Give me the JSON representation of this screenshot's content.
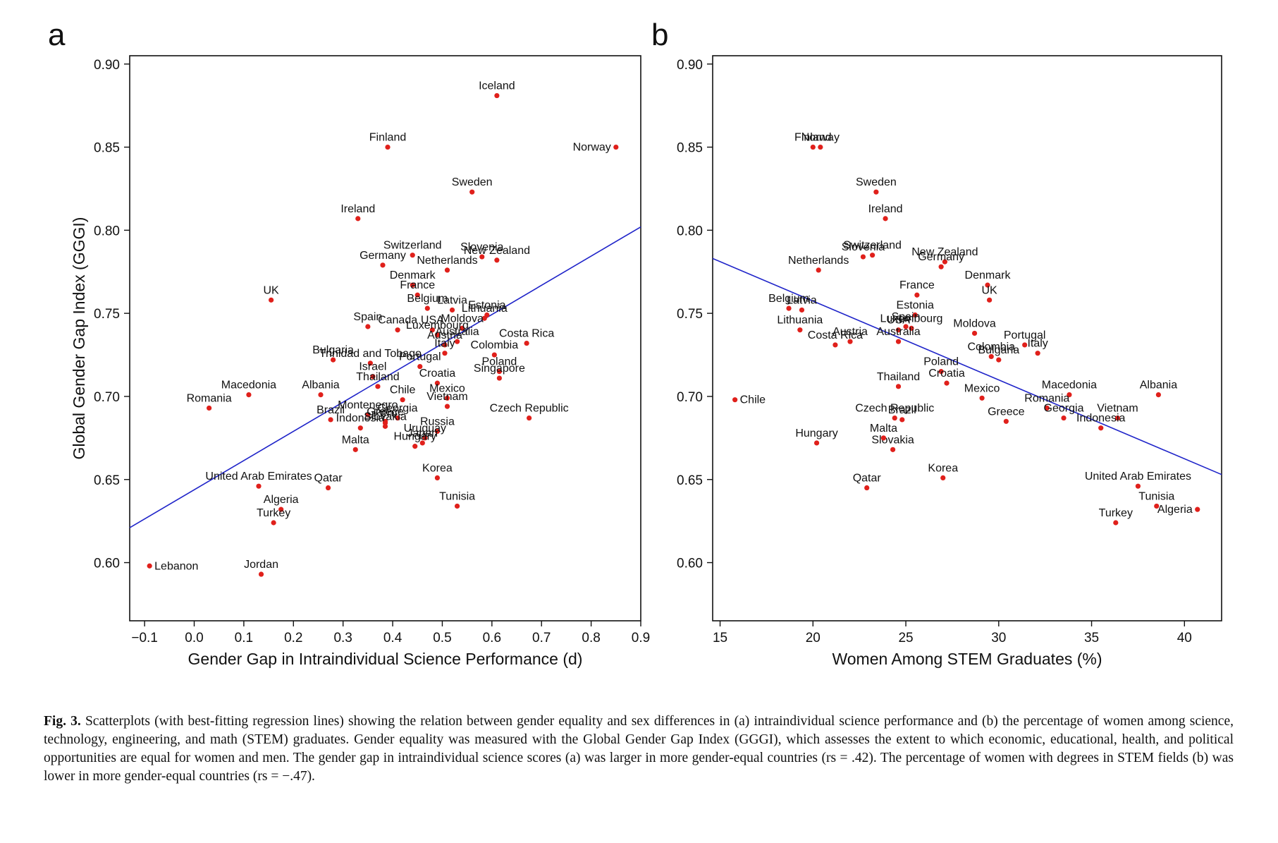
{
  "figure": {
    "caption_label": "Fig. 3.",
    "caption_text": "Scatterplots (with best-fitting regression lines) showing the relation between gender equality and sex differences in (a) intraindividual science performance and (b) the percentage of women among science, technology, engineering, and math (STEM) graduates. Gender equality was measured with the Global Gender Gap Index (GGGI), which assesses the extent to which economic, educational, health, and political opportunities are equal for women and men. The gender gap in intraindividual science scores (a) was larger in more gender-equal countries (rs = .42). The percentage of women with degrees in STEM fields (b) was lower in more gender-equal countries (rs = −.47)."
  },
  "colors": {
    "point": "#e0201b",
    "regression_line": "#1f24c9",
    "axis": "#111111"
  },
  "chart_data": [
    {
      "type": "scatter",
      "panel": "a",
      "xlabel": "Gender Gap in Intraindividual Science Performance (d)",
      "ylabel": "Global Gender Gap Index (GGGI)",
      "xlim": [
        -0.13,
        0.9
      ],
      "ylim": [
        0.565,
        0.905
      ],
      "xticks": [
        -0.1,
        0.0,
        0.1,
        0.2,
        0.3,
        0.4,
        0.5,
        0.6,
        0.7,
        0.8,
        0.9
      ],
      "xtick_labels": [
        "−0.1",
        "0.0",
        "0.1",
        "0.2",
        "0.3",
        "0.4",
        "0.5",
        "0.6",
        "0.7",
        "0.8",
        "0.9"
      ],
      "yticks": [
        0.6,
        0.65,
        0.7,
        0.75,
        0.8,
        0.85,
        0.9
      ],
      "ytick_labels": [
        "0.60",
        "0.65",
        "0.70",
        "0.75",
        "0.80",
        "0.85",
        "0.90"
      ],
      "regression": {
        "x": [
          -0.13,
          0.9
        ],
        "y": [
          0.621,
          0.802
        ]
      },
      "grid": false,
      "points": [
        {
          "label": "Iceland",
          "x": 0.61,
          "y": 0.881
        },
        {
          "label": "Norway",
          "x": 0.85,
          "y": 0.85
        },
        {
          "label": "Finland",
          "x": 0.39,
          "y": 0.85
        },
        {
          "label": "Sweden",
          "x": 0.56,
          "y": 0.823
        },
        {
          "label": "Ireland",
          "x": 0.33,
          "y": 0.807
        },
        {
          "label": "Switzerland",
          "x": 0.44,
          "y": 0.785
        },
        {
          "label": "Slovenia",
          "x": 0.58,
          "y": 0.784
        },
        {
          "label": "New Zealand",
          "x": 0.61,
          "y": 0.782
        },
        {
          "label": "Germany",
          "x": 0.38,
          "y": 0.779
        },
        {
          "label": "Netherlands",
          "x": 0.51,
          "y": 0.776
        },
        {
          "label": "Denmark",
          "x": 0.44,
          "y": 0.767
        },
        {
          "label": "France",
          "x": 0.45,
          "y": 0.761
        },
        {
          "label": "UK",
          "x": 0.155,
          "y": 0.758
        },
        {
          "label": "Belgium",
          "x": 0.47,
          "y": 0.753
        },
        {
          "label": "Latvia",
          "x": 0.52,
          "y": 0.752
        },
        {
          "label": "Estonia",
          "x": 0.59,
          "y": 0.749
        },
        {
          "label": "Lithuania",
          "x": 0.585,
          "y": 0.747
        },
        {
          "label": "Spain",
          "x": 0.35,
          "y": 0.742
        },
        {
          "label": "Moldova",
          "x": 0.54,
          "y": 0.741
        },
        {
          "label": "Canada",
          "x": 0.41,
          "y": 0.74
        },
        {
          "label": "USA",
          "x": 0.48,
          "y": 0.74
        },
        {
          "label": "Luxembourg",
          "x": 0.49,
          "y": 0.737
        },
        {
          "label": "Australia",
          "x": 0.53,
          "y": 0.733
        },
        {
          "label": "Costa Rica",
          "x": 0.67,
          "y": 0.732
        },
        {
          "label": "Austria",
          "x": 0.505,
          "y": 0.731
        },
        {
          "label": "Italy",
          "x": 0.505,
          "y": 0.726
        },
        {
          "label": "Colombia",
          "x": 0.605,
          "y": 0.725
        },
        {
          "label": "Trinidad and Tobago",
          "x": 0.355,
          "y": 0.72
        },
        {
          "label": "Bulgaria",
          "x": 0.28,
          "y": 0.722
        },
        {
          "label": "Portugal",
          "x": 0.455,
          "y": 0.718
        },
        {
          "label": "Poland",
          "x": 0.615,
          "y": 0.715
        },
        {
          "label": "Israel",
          "x": 0.36,
          "y": 0.712
        },
        {
          "label": "Singapore",
          "x": 0.615,
          "y": 0.711
        },
        {
          "label": "Croatia",
          "x": 0.49,
          "y": 0.708
        },
        {
          "label": "Thailand",
          "x": 0.37,
          "y": 0.706
        },
        {
          "label": "Macedonia",
          "x": 0.11,
          "y": 0.701
        },
        {
          "label": "Albania",
          "x": 0.255,
          "y": 0.701
        },
        {
          "label": "Mexico",
          "x": 0.51,
          "y": 0.699
        },
        {
          "label": "Chile",
          "x": 0.42,
          "y": 0.698
        },
        {
          "label": "Vietnam",
          "x": 0.51,
          "y": 0.694
        },
        {
          "label": "Romania",
          "x": 0.03,
          "y": 0.693
        },
        {
          "label": "Montenegro",
          "x": 0.35,
          "y": 0.689
        },
        {
          "label": "Georgia",
          "x": 0.41,
          "y": 0.687
        },
        {
          "label": "Czech Republic",
          "x": 0.675,
          "y": 0.687
        },
        {
          "label": "Greece",
          "x": 0.385,
          "y": 0.685
        },
        {
          "label": "Brazil",
          "x": 0.275,
          "y": 0.686
        },
        {
          "label": "Slovakia",
          "x": 0.385,
          "y": 0.682
        },
        {
          "label": "Indonesia",
          "x": 0.335,
          "y": 0.681
        },
        {
          "label": "Russia",
          "x": 0.49,
          "y": 0.679
        },
        {
          "label": "Peru",
          "x": 0.385,
          "y": 0.684
        },
        {
          "label": "Uruguay",
          "x": 0.465,
          "y": 0.675
        },
        {
          "label": "Japan",
          "x": 0.46,
          "y": 0.672
        },
        {
          "label": "Hungary",
          "x": 0.445,
          "y": 0.67
        },
        {
          "label": "Malta",
          "x": 0.325,
          "y": 0.668
        },
        {
          "label": "Korea",
          "x": 0.49,
          "y": 0.651
        },
        {
          "label": "United Arab Emirates",
          "x": 0.13,
          "y": 0.646
        },
        {
          "label": "Qatar",
          "x": 0.27,
          "y": 0.645
        },
        {
          "label": "Tunisia",
          "x": 0.53,
          "y": 0.634
        },
        {
          "label": "Algeria",
          "x": 0.175,
          "y": 0.632
        },
        {
          "label": "Turkey",
          "x": 0.16,
          "y": 0.624
        },
        {
          "label": "Lebanon",
          "x": -0.09,
          "y": 0.598
        },
        {
          "label": "Jordan",
          "x": 0.135,
          "y": 0.593
        }
      ]
    },
    {
      "type": "scatter",
      "panel": "b",
      "xlabel": "Women Among STEM Graduates (%)",
      "ylabel": "",
      "xlim": [
        14.6,
        42.0
      ],
      "ylim": [
        0.565,
        0.905
      ],
      "xticks": [
        15,
        20,
        25,
        30,
        35,
        40
      ],
      "xtick_labels": [
        "15",
        "20",
        "25",
        "30",
        "35",
        "40"
      ],
      "yticks": [
        0.6,
        0.65,
        0.7,
        0.75,
        0.8,
        0.85,
        0.9
      ],
      "ytick_labels": [
        "0.60",
        "0.65",
        "0.70",
        "0.75",
        "0.80",
        "0.85",
        "0.90"
      ],
      "regression": {
        "x": [
          14.6,
          42.0
        ],
        "y": [
          0.783,
          0.653
        ]
      },
      "grid": false,
      "points": [
        {
          "label": "Finland",
          "x": 20.0,
          "y": 0.85
        },
        {
          "label": "Norway",
          "x": 20.4,
          "y": 0.85
        },
        {
          "label": "Sweden",
          "x": 23.4,
          "y": 0.823
        },
        {
          "label": "Ireland",
          "x": 23.9,
          "y": 0.807
        },
        {
          "label": "Switzerland",
          "x": 23.2,
          "y": 0.785
        },
        {
          "label": "Slovenia",
          "x": 22.7,
          "y": 0.784
        },
        {
          "label": "New Zealand",
          "x": 27.1,
          "y": 0.781
        },
        {
          "label": "Germany",
          "x": 26.9,
          "y": 0.778
        },
        {
          "label": "Netherlands",
          "x": 20.3,
          "y": 0.776
        },
        {
          "label": "Denmark",
          "x": 29.4,
          "y": 0.767
        },
        {
          "label": "France",
          "x": 25.6,
          "y": 0.761
        },
        {
          "label": "UK",
          "x": 29.5,
          "y": 0.758
        },
        {
          "label": "Belgium",
          "x": 18.7,
          "y": 0.753
        },
        {
          "label": "Latvia",
          "x": 19.4,
          "y": 0.752
        },
        {
          "label": "Estonia",
          "x": 25.5,
          "y": 0.749
        },
        {
          "label": "Spain",
          "x": 25.0,
          "y": 0.742
        },
        {
          "label": "Luxembourg",
          "x": 25.3,
          "y": 0.741
        },
        {
          "label": "USA",
          "x": 24.6,
          "y": 0.74
        },
        {
          "label": "Lithuania",
          "x": 19.3,
          "y": 0.74
        },
        {
          "label": "Moldova",
          "x": 28.7,
          "y": 0.738
        },
        {
          "label": "Austria",
          "x": 22.0,
          "y": 0.733
        },
        {
          "label": "Australia",
          "x": 24.6,
          "y": 0.733
        },
        {
          "label": "Portugal",
          "x": 31.4,
          "y": 0.731
        },
        {
          "label": "Costa Rica",
          "x": 21.2,
          "y": 0.731
        },
        {
          "label": "Italy",
          "x": 32.1,
          "y": 0.726
        },
        {
          "label": "Colombia",
          "x": 29.6,
          "y": 0.724
        },
        {
          "label": "Bulgaria",
          "x": 30.0,
          "y": 0.722
        },
        {
          "label": "Poland",
          "x": 26.9,
          "y": 0.715
        },
        {
          "label": "Croatia",
          "x": 27.2,
          "y": 0.708
        },
        {
          "label": "Thailand",
          "x": 24.6,
          "y": 0.706
        },
        {
          "label": "Macedonia",
          "x": 33.8,
          "y": 0.701
        },
        {
          "label": "Albania",
          "x": 38.6,
          "y": 0.701
        },
        {
          "label": "Mexico",
          "x": 29.1,
          "y": 0.699
        },
        {
          "label": "Chile",
          "x": 15.8,
          "y": 0.698
        },
        {
          "label": "Romania",
          "x": 32.6,
          "y": 0.693
        },
        {
          "label": "Vietnam",
          "x": 36.4,
          "y": 0.687
        },
        {
          "label": "Czech Republic",
          "x": 24.4,
          "y": 0.687
        },
        {
          "label": "Georgia",
          "x": 33.5,
          "y": 0.687
        },
        {
          "label": "Brazil",
          "x": 24.8,
          "y": 0.686
        },
        {
          "label": "Greece",
          "x": 30.4,
          "y": 0.685
        },
        {
          "label": "Indonesia",
          "x": 35.5,
          "y": 0.681
        },
        {
          "label": "Hungary",
          "x": 20.2,
          "y": 0.672
        },
        {
          "label": "Slovakia",
          "x": 24.3,
          "y": 0.668
        },
        {
          "label": "Malta",
          "x": 23.8,
          "y": 0.675
        },
        {
          "label": "Korea",
          "x": 27.0,
          "y": 0.651
        },
        {
          "label": "United Arab Emirates",
          "x": 37.5,
          "y": 0.646
        },
        {
          "label": "Qatar",
          "x": 22.9,
          "y": 0.645
        },
        {
          "label": "Tunisia",
          "x": 38.5,
          "y": 0.634
        },
        {
          "label": "Algeria",
          "x": 40.7,
          "y": 0.632
        },
        {
          "label": "Turkey",
          "x": 36.3,
          "y": 0.624
        }
      ]
    }
  ]
}
